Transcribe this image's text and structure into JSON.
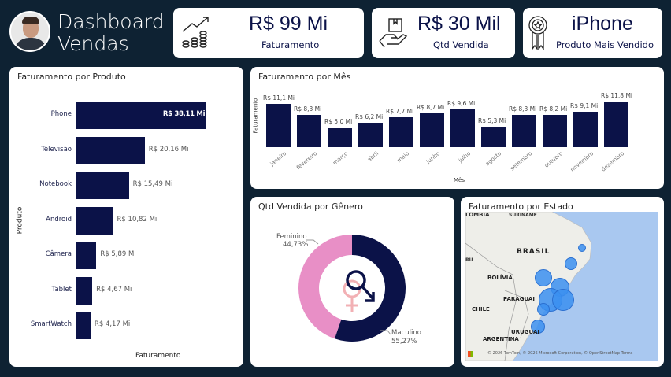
{
  "header": {
    "title_line1": "Dashboard",
    "title_line2": "Vendas",
    "avatar": "user-photo"
  },
  "kpis": [
    {
      "value": "R$ 99 Mi",
      "label": "Faturamento",
      "icon": "growth-coins-icon"
    },
    {
      "value": "R$ 30 Mil",
      "label": "Qtd Vendida",
      "icon": "hand-box-icon"
    },
    {
      "value": "iPhone",
      "label": "Produto Mais Vendido",
      "icon": "award-ribbon-icon"
    }
  ],
  "colors": {
    "bar": "#0b1248",
    "female": "#e88fc6",
    "male": "#0b1248",
    "bubble": "#3b8ff0",
    "background": "#0e2233"
  },
  "chart_data": [
    {
      "type": "bar",
      "orientation": "horizontal",
      "title": "Faturamento por Produto",
      "xlabel": "Faturamento",
      "ylabel": "Produto",
      "categories": [
        "iPhone",
        "Televisão",
        "Notebook",
        "Android",
        "Câmera",
        "Tablet",
        "SmartWatch"
      ],
      "values": [
        38.11,
        20.16,
        15.49,
        10.82,
        5.89,
        4.67,
        4.17
      ],
      "labels": [
        "R$ 38,11 Mi",
        "R$ 20,16 Mi",
        "R$ 15,49 Mi",
        "R$ 10,82 Mi",
        "R$ 5,89 Mi",
        "R$ 4,67 Mi",
        "R$ 4,17 Mi"
      ]
    },
    {
      "type": "bar",
      "title": "Faturamento por Mês",
      "xlabel": "Mês",
      "ylabel": "Faturamento",
      "categories": [
        "janeiro",
        "fevereiro",
        "março",
        "abril",
        "maio",
        "junho",
        "julho",
        "agosto",
        "setembro",
        "outubro",
        "novembro",
        "dezembro"
      ],
      "values": [
        11.1,
        8.3,
        5.0,
        6.2,
        7.7,
        8.7,
        9.6,
        5.3,
        8.3,
        8.2,
        9.1,
        11.8
      ],
      "labels": [
        "R$ 11,1 Mi",
        "R$ 8,3 Mi",
        "R$ 5,0 Mi",
        "R$ 6,2 Mi",
        "R$ 7,7 Mi",
        "R$ 8,7 Mi",
        "R$ 9,6 Mi",
        "R$ 5,3 Mi",
        "R$ 8,3 Mi",
        "R$ 8,2 Mi",
        "R$ 9,1 Mi",
        "R$ 11,8 Mi"
      ]
    },
    {
      "type": "pie",
      "variant": "donut",
      "title": "Qtd Vendida por Gênero",
      "categories": [
        "Feminino",
        "Maculino"
      ],
      "values": [
        44.73,
        55.27
      ],
      "labels": [
        "44,73%",
        "55,27%"
      ]
    }
  ],
  "map": {
    "title": "Faturamento por Estado",
    "places": [
      "LÔMBIA",
      "SURINAME",
      "BRASIL",
      "RU",
      "BOLÍVIA",
      "PARAGUAI",
      "CHILE",
      "URUGUAI",
      "ARGENTINA"
    ],
    "attribution": "© 2026 TomTom, © 2026 Microsoft Corporation, © OpenStreetMap  Terms"
  }
}
